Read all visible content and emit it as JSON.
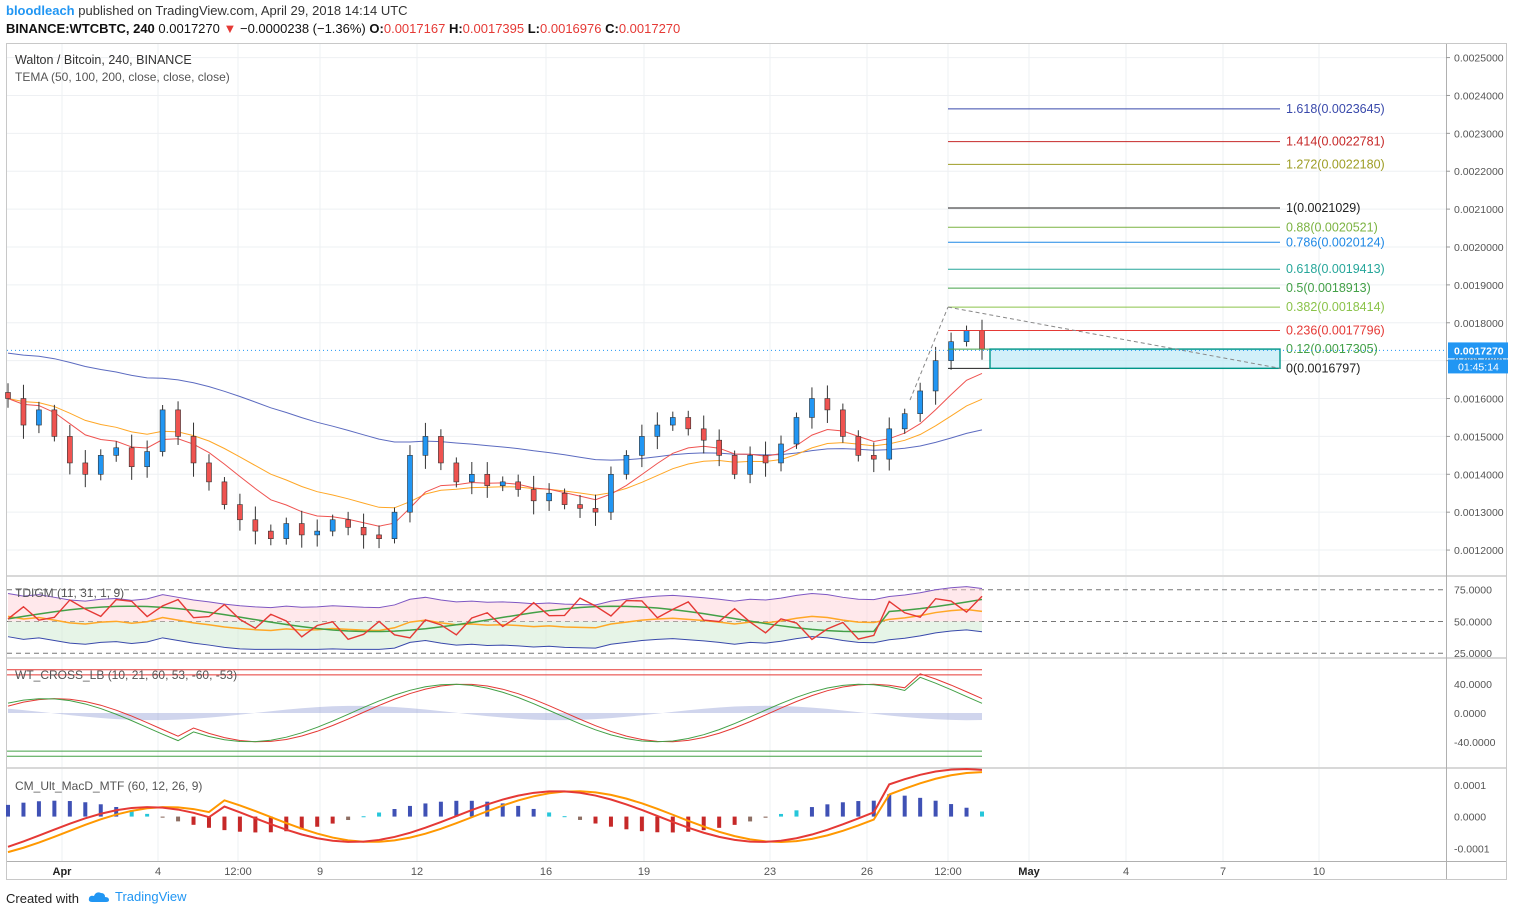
{
  "header": {
    "author": "bloodleach",
    "published_text": "published on TradingView.com, April 29, 2018 14:14 UTC",
    "symbol_line": "BINANCE:WTCBTC, 240",
    "last": "0.0017270",
    "change_arrow": "▼",
    "change": "−0.0000238 (−1.36%)",
    "o_label": "O:",
    "o": "0.0017167",
    "h_label": "H:",
    "h": "0.0017395",
    "l_label": "L:",
    "l": "0.0016976",
    "c_label": "C:",
    "c": "0.0017270"
  },
  "footer": {
    "created_with": "Created with",
    "brand": "TradingView"
  },
  "colors": {
    "up": "#2196f3",
    "down": "#ef5350",
    "fib_box": "#009688",
    "price_badge": "#2196f3"
  },
  "chart_data": [
    {
      "type": "candlestick",
      "title": "Walton / Bitcoin, 240, BINANCE",
      "indicator": "TEMA (50, 100, 200, close, close, close)",
      "ylim": [
        0.00115,
        0.00252
      ],
      "y_ticks": [
        "0.0012000",
        "0.0013000",
        "0.0014000",
        "0.0015000",
        "0.0016000",
        "0.0017000",
        "0.0018000",
        "0.0019000",
        "0.0020000",
        "0.0021000",
        "0.0022000",
        "0.0023000",
        "0.0024000",
        "0.0025000"
      ],
      "x_ticks": [
        "Apr",
        "4",
        "12:00",
        "9",
        "12",
        "16",
        "19",
        "23",
        "26",
        "12:00",
        "May",
        "4",
        "7",
        "10"
      ],
      "current_price_label": "0.0017270",
      "countdown_label": "01:45:14",
      "close_approx": [
        0.0016,
        0.00153,
        0.00157,
        0.0015,
        0.00143,
        0.0014,
        0.00145,
        0.00147,
        0.00142,
        0.00146,
        0.00157,
        0.0015,
        0.00143,
        0.00138,
        0.00132,
        0.00128,
        0.00125,
        0.00123,
        0.00127,
        0.00124,
        0.00125,
        0.00128,
        0.00126,
        0.00124,
        0.00123,
        0.0013,
        0.00145,
        0.0015,
        0.00143,
        0.00138,
        0.0014,
        0.00137,
        0.00138,
        0.00136,
        0.00133,
        0.00135,
        0.00132,
        0.00131,
        0.0013,
        0.0014,
        0.00145,
        0.0015,
        0.00153,
        0.00155,
        0.00152,
        0.00149,
        0.00145,
        0.0014,
        0.00145,
        0.00143,
        0.00148,
        0.00155,
        0.0016,
        0.00157,
        0.0015,
        0.00145,
        0.00144,
        0.00152,
        0.00156,
        0.00162,
        0.0017,
        0.00175,
        0.00178,
        0.00173
      ],
      "fib_levels": [
        {
          "ratio": "1.618",
          "value": "0.0023645",
          "label": "1.618(0.0023645)",
          "color": "#3949ab"
        },
        {
          "ratio": "1.414",
          "value": "0.0022781",
          "label": "1.414(0.0022781)",
          "color": "#c62828"
        },
        {
          "ratio": "1.272",
          "value": "0.0022180",
          "label": "1.272(0.0022180)",
          "color": "#9e9d24"
        },
        {
          "ratio": "1",
          "value": "0.0021029",
          "label": "1(0.0021029)",
          "color": "#212121"
        },
        {
          "ratio": "0.88",
          "value": "0.0020521",
          "label": "0.88(0.0020521)",
          "color": "#7cb342"
        },
        {
          "ratio": "0.786",
          "value": "0.0020124",
          "label": "0.786(0.0020124)",
          "color": "#1e88e5"
        },
        {
          "ratio": "0.618",
          "value": "0.0019413",
          "label": "0.618(0.0019413)",
          "color": "#26a69a"
        },
        {
          "ratio": "0.5",
          "value": "0.0018913",
          "label": "0.5(0.0018913)",
          "color": "#43a047"
        },
        {
          "ratio": "0.382",
          "value": "0.0018414",
          "label": "0.382(0.0018414)",
          "color": "#8bc34a"
        },
        {
          "ratio": "0.236",
          "value": "0.0017796",
          "label": "0.236(0.0017796)",
          "color": "#e53935"
        },
        {
          "ratio": "0.12",
          "value": "0.0017305",
          "label": "0.12(0.0017305)",
          "color": "#43a047"
        },
        {
          "ratio": "0",
          "value": "0.0016797",
          "label": "0(0.0016797)",
          "color": "#212121"
        }
      ]
    },
    {
      "type": "line",
      "title": "TDIGM (11, 31, 1, 9)",
      "ylim": [
        22,
        85
      ],
      "y_ticks": [
        "75.0000",
        "50.0000",
        "25.0000"
      ]
    },
    {
      "type": "line",
      "title": "WT_CROSS_LB (10, 21, 60, 53, -60, -53)",
      "ylim": [
        -75,
        75
      ],
      "y_ticks": [
        "40.0000",
        "0.0000",
        "-40.0000"
      ]
    },
    {
      "type": "bar",
      "title": "CM_Ult_MacD_MTF (60, 12, 26, 9)",
      "ylim": [
        -0.00014,
        0.00015
      ],
      "y_ticks": [
        "0.0001",
        "0.0000",
        "-0.0001"
      ]
    }
  ]
}
